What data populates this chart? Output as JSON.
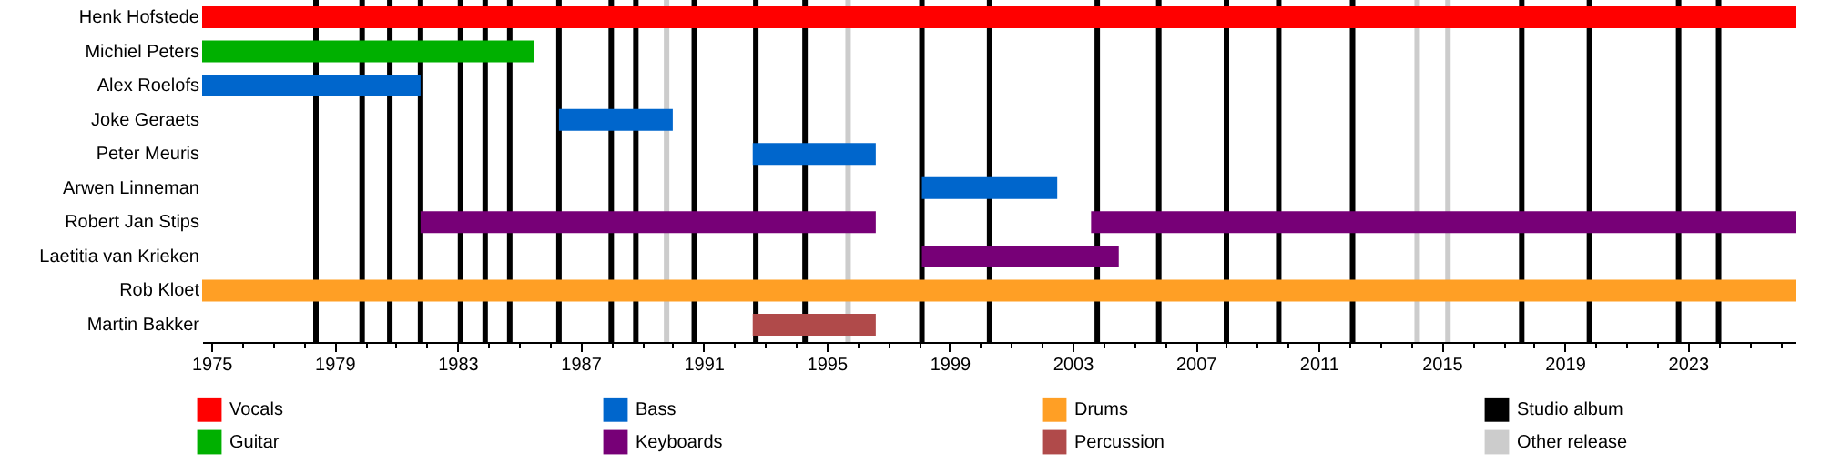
{
  "chart_data": {
    "type": "bar",
    "orientation": "horizontal",
    "legend": "bottom",
    "grid": false,
    "categories": [
      "Henk Hofstede",
      "Michiel Peters",
      "Alex Roelofs",
      "Joke Geraets",
      "Peter Meuris",
      "Arwen Linneman",
      "Robert Jan Stips",
      "Laetitia van Krieken",
      "Rob Kloet",
      "Martin Bakker"
    ],
    "xlim": [
      1974.7,
      2026.5
    ],
    "xticks": [
      1975,
      {
        "value": 1976,
        "label": null
      },
      {
        "value": 1977,
        "label": null
      },
      {
        "value": 1978,
        "label": null
      },
      1979,
      {
        "value": 1980,
        "label": null
      },
      {
        "value": 1981,
        "label": null
      },
      {
        "value": 1982,
        "label": null
      },
      1983,
      {
        "value": 1984,
        "label": null
      },
      {
        "value": 1985,
        "label": null
      },
      {
        "value": 1986,
        "label": null
      },
      1987,
      {
        "value": 1988,
        "label": null
      },
      {
        "value": 1989,
        "label": null
      },
      {
        "value": 1990,
        "label": null
      },
      1991,
      {
        "value": 1992,
        "label": null
      },
      {
        "value": 1993,
        "label": null
      },
      {
        "value": 1994,
        "label": null
      },
      1995,
      {
        "value": 1996,
        "label": null
      },
      {
        "value": 1997,
        "label": null
      },
      {
        "value": 1998,
        "label": null
      },
      1999,
      {
        "value": 2000,
        "label": null
      },
      {
        "value": 2001,
        "label": null
      },
      {
        "value": 2002,
        "label": null
      },
      2003,
      {
        "value": 2004,
        "label": null
      },
      {
        "value": 2005,
        "label": null
      },
      {
        "value": 2006,
        "label": null
      },
      2007,
      {
        "value": 2008,
        "label": null
      },
      {
        "value": 2009,
        "label": null
      },
      {
        "value": 2010,
        "label": null
      },
      2011,
      {
        "value": 2012,
        "label": null
      },
      {
        "value": 2013,
        "label": null
      },
      {
        "value": 2014,
        "label": null
      },
      2015,
      {
        "value": 2016,
        "label": null
      },
      {
        "value": 2017,
        "label": null
      },
      {
        "value": 2018,
        "label": null
      },
      2019,
      {
        "value": 2020,
        "label": null
      },
      {
        "value": 2021,
        "label": null
      },
      {
        "value": 2022,
        "label": null
      },
      2023,
      {
        "value": 2024,
        "label": null
      },
      {
        "value": 2025,
        "label": null
      },
      {
        "value": 2026,
        "label": null
      }
    ],
    "series": [
      {
        "name": "Vocals",
        "color": "#ff0000",
        "values": [
          51.8,
          null,
          null,
          null,
          null,
          null,
          null,
          null,
          null,
          null
        ],
        "base": [
          1974.7,
          null,
          null,
          null,
          null,
          null,
          null,
          null,
          null,
          null
        ]
      },
      {
        "name": "Guitar",
        "color": "#00b000",
        "values": [
          null,
          10.8,
          null,
          null,
          null,
          null,
          null,
          null,
          null,
          null
        ],
        "base": [
          null,
          1974.7,
          null,
          null,
          null,
          null,
          null,
          null,
          null,
          null
        ]
      },
      {
        "name": "Bass",
        "color": "#0066cc",
        "values": [
          null,
          null,
          7.1,
          3.7,
          4.0,
          4.4,
          null,
          null,
          null,
          null
        ],
        "base": [
          null,
          null,
          1974.7,
          1986.3,
          1992.6,
          1998.1,
          null,
          null,
          null,
          null
        ]
      },
      {
        "name": "Keyboards",
        "color": "#770077",
        "values": [
          null,
          null,
          null,
          null,
          null,
          null,
          14.8,
          6.4,
          null,
          null
        ],
        "base": [
          null,
          null,
          null,
          null,
          null,
          null,
          1981.8,
          1998.1,
          null,
          null
        ]
      },
      {
        "name": "Drums",
        "color": "#ff9f25",
        "values": [
          null,
          null,
          null,
          null,
          null,
          null,
          null,
          null,
          51.8,
          null
        ],
        "base": [
          null,
          null,
          null,
          null,
          null,
          null,
          null,
          null,
          1974.7,
          null
        ]
      },
      {
        "name": "Percussion",
        "color": "#b04a4a",
        "values": [
          null,
          null,
          null,
          null,
          null,
          null,
          null,
          null,
          null,
          4.0
        ],
        "base": [
          null,
          null,
          null,
          null,
          null,
          null,
          null,
          null,
          null,
          1992.6
        ]
      },
      {
        "color": "#770077",
        "values": [
          null,
          null,
          null,
          null,
          null,
          null,
          22.9,
          null,
          null,
          null
        ],
        "base": [
          null,
          null,
          null,
          null,
          null,
          null,
          2003.6,
          null,
          null,
          null
        ]
      }
    ],
    "ref_lines": [
      {
        "axis": "x",
        "value": 1978.4,
        "label": "Studio album",
        "color": "#000000"
      },
      {
        "axis": "x",
        "value": 1979.9,
        "color": "#000000"
      },
      {
        "axis": "x",
        "value": 1980.8,
        "color": "#000000"
      },
      {
        "axis": "x",
        "value": 1981.8,
        "color": "#000000"
      },
      {
        "axis": "x",
        "value": 1983.1,
        "color": "#000000"
      },
      {
        "axis": "x",
        "value": 1983.9,
        "color": "#000000"
      },
      {
        "axis": "x",
        "value": 1984.7,
        "color": "#000000"
      },
      {
        "axis": "x",
        "value": 1986.3,
        "color": "#000000"
      },
      {
        "axis": "x",
        "value": 1988.0,
        "color": "#000000"
      },
      {
        "axis": "x",
        "value": 1988.8,
        "color": "#000000"
      },
      {
        "axis": "x",
        "value": 1989.8,
        "label": "Other release",
        "color": "#cccccc"
      },
      {
        "axis": "x",
        "value": 1990.7,
        "color": "#000000"
      },
      {
        "axis": "x",
        "value": 1992.7,
        "color": "#000000"
      },
      {
        "axis": "x",
        "value": 1994.3,
        "color": "#000000"
      },
      {
        "axis": "x",
        "value": 1995.7,
        "color": "#cccccc"
      },
      {
        "axis": "x",
        "value": 1998.1,
        "color": "#000000"
      },
      {
        "axis": "x",
        "value": 2000.3,
        "color": "#000000"
      },
      {
        "axis": "x",
        "value": 2003.8,
        "color": "#000000"
      },
      {
        "axis": "x",
        "value": 2005.8,
        "color": "#000000"
      },
      {
        "axis": "x",
        "value": 2008.0,
        "color": "#000000"
      },
      {
        "axis": "x",
        "value": 2009.7,
        "color": "#000000"
      },
      {
        "axis": "x",
        "value": 2012.1,
        "color": "#000000"
      },
      {
        "axis": "x",
        "value": 2014.2,
        "color": "#cccccc"
      },
      {
        "axis": "x",
        "value": 2015.2,
        "color": "#cccccc"
      },
      {
        "axis": "x",
        "value": 2017.6,
        "color": "#000000"
      },
      {
        "axis": "x",
        "value": 2019.8,
        "color": "#000000"
      },
      {
        "axis": "x",
        "value": 2022.7,
        "color": "#000000"
      },
      {
        "axis": "x",
        "value": 2024.0,
        "color": "#000000"
      }
    ]
  }
}
